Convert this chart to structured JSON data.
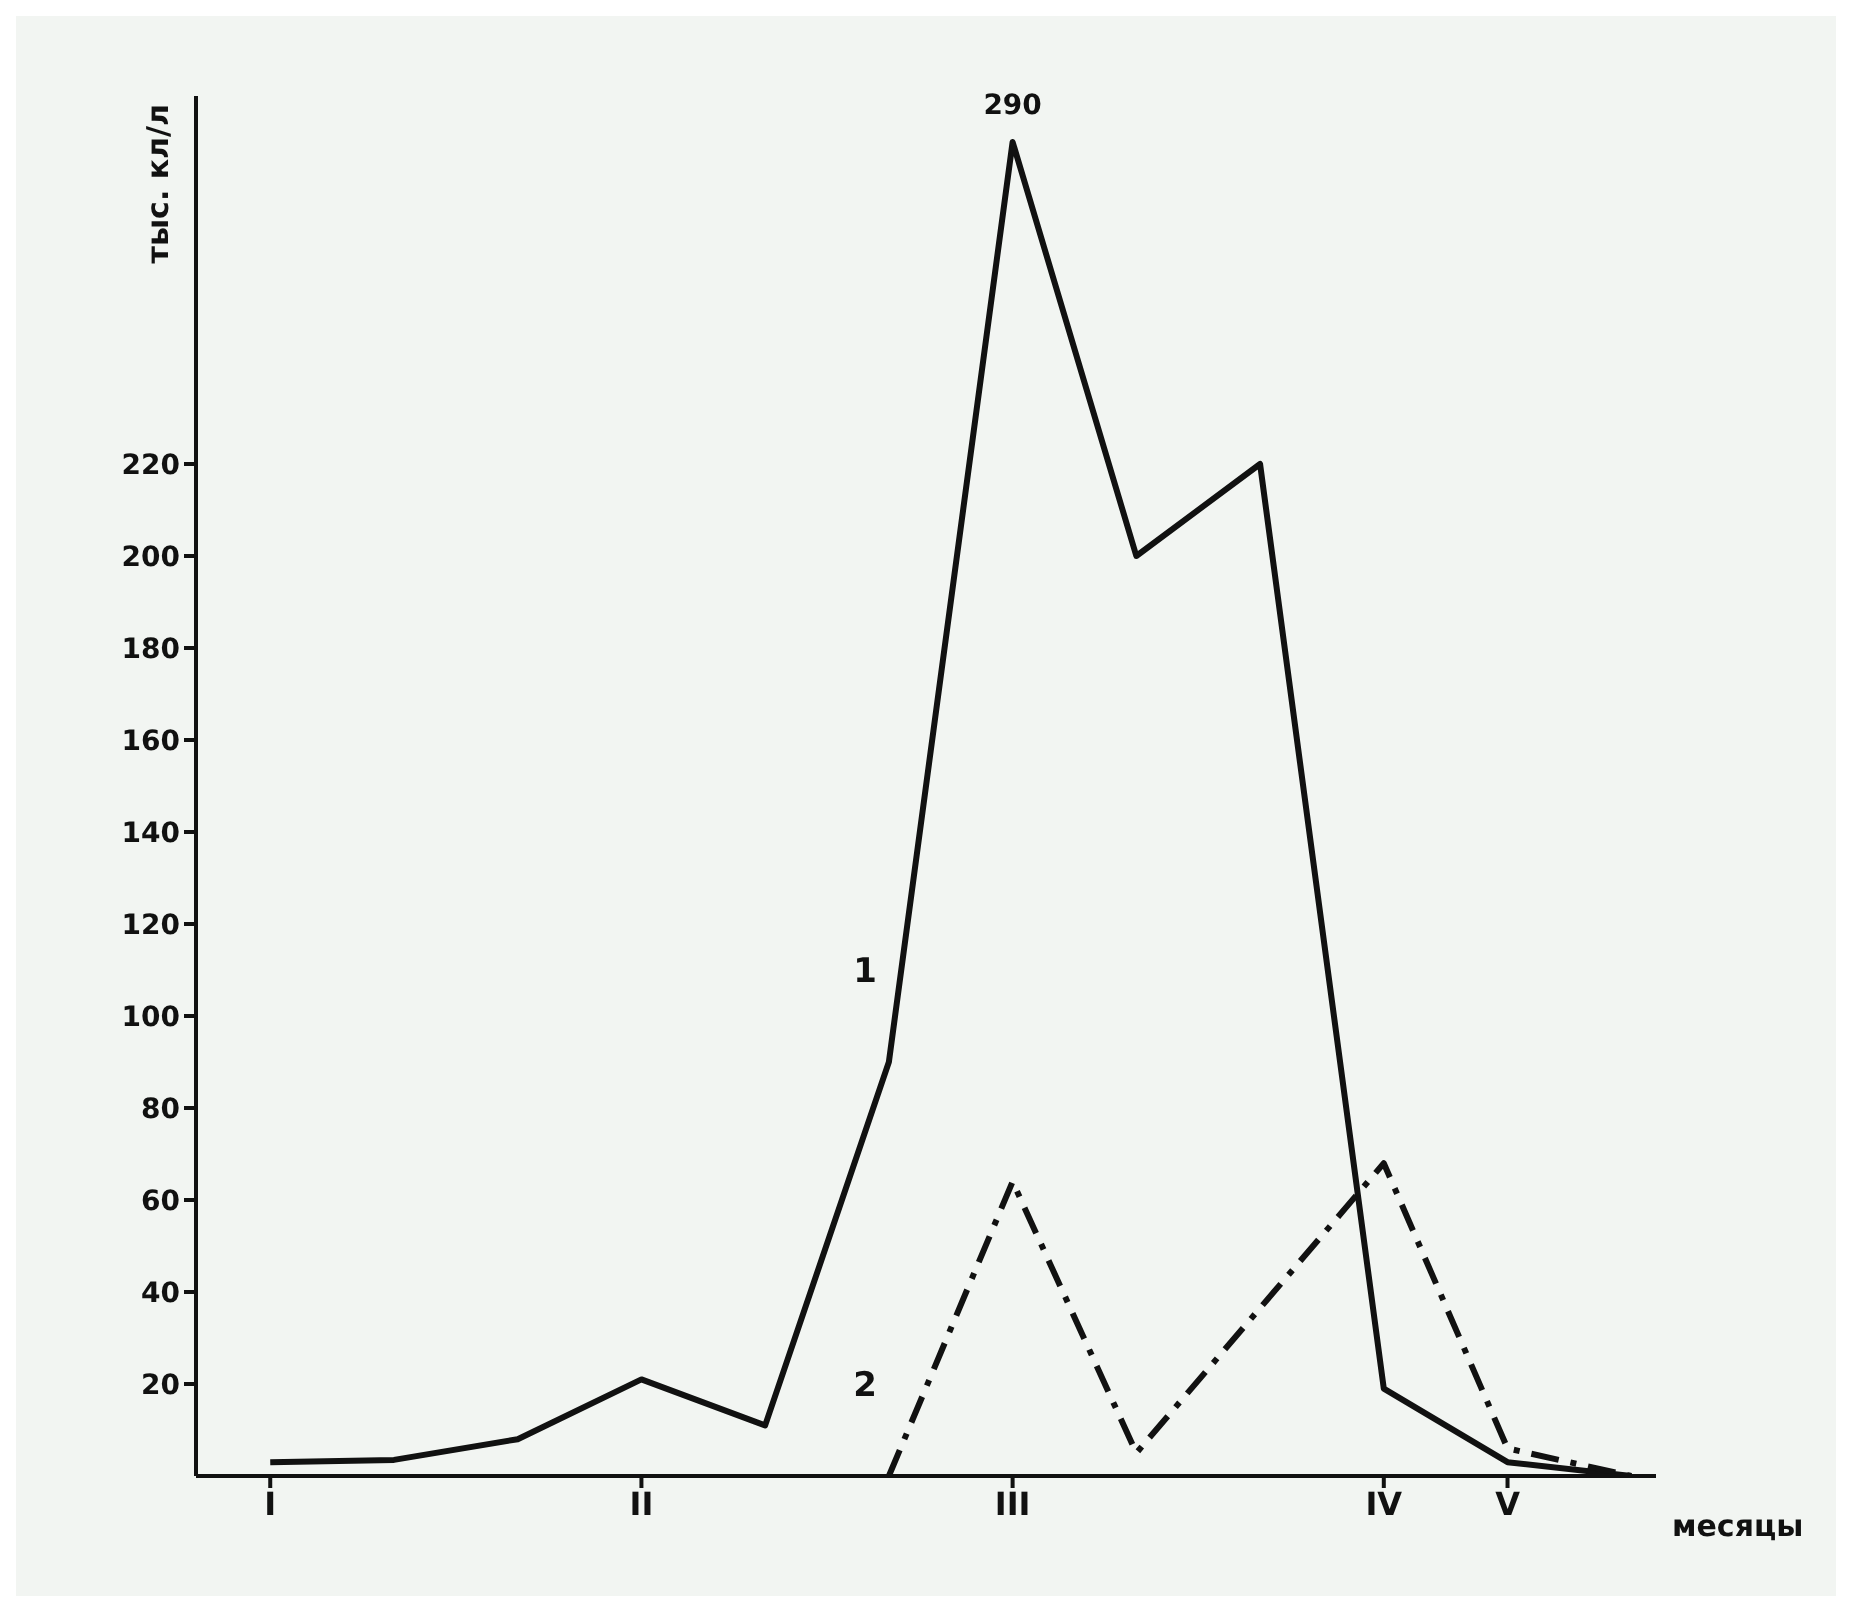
{
  "chart_data": {
    "type": "line",
    "xlabel": "месяцы",
    "ylabel": "тыс. кл/л",
    "categories": [
      "I",
      null,
      null,
      "II",
      null,
      null,
      "III",
      null,
      null,
      "IV",
      "V",
      null
    ],
    "ylim": [
      0,
      300
    ],
    "yticks": [
      20,
      40,
      60,
      80,
      100,
      120,
      140,
      160,
      180,
      200,
      220
    ],
    "grid": false,
    "legend": false,
    "marker": "none",
    "series": [
      {
        "name": "1",
        "color": "#111111",
        "line_style": "solid",
        "values": [
          3,
          3.5,
          8,
          21,
          11,
          90,
          290,
          200,
          220,
          19,
          3,
          0
        ],
        "value_labels": [
          null,
          null,
          null,
          null,
          null,
          null,
          "290",
          null,
          null,
          null,
          null,
          null
        ]
      },
      {
        "name": "2",
        "color": "#111111",
        "line_style": "dashed",
        "values": [
          null,
          null,
          null,
          null,
          null,
          0,
          64,
          5,
          null,
          68,
          6,
          0
        ]
      }
    ]
  }
}
